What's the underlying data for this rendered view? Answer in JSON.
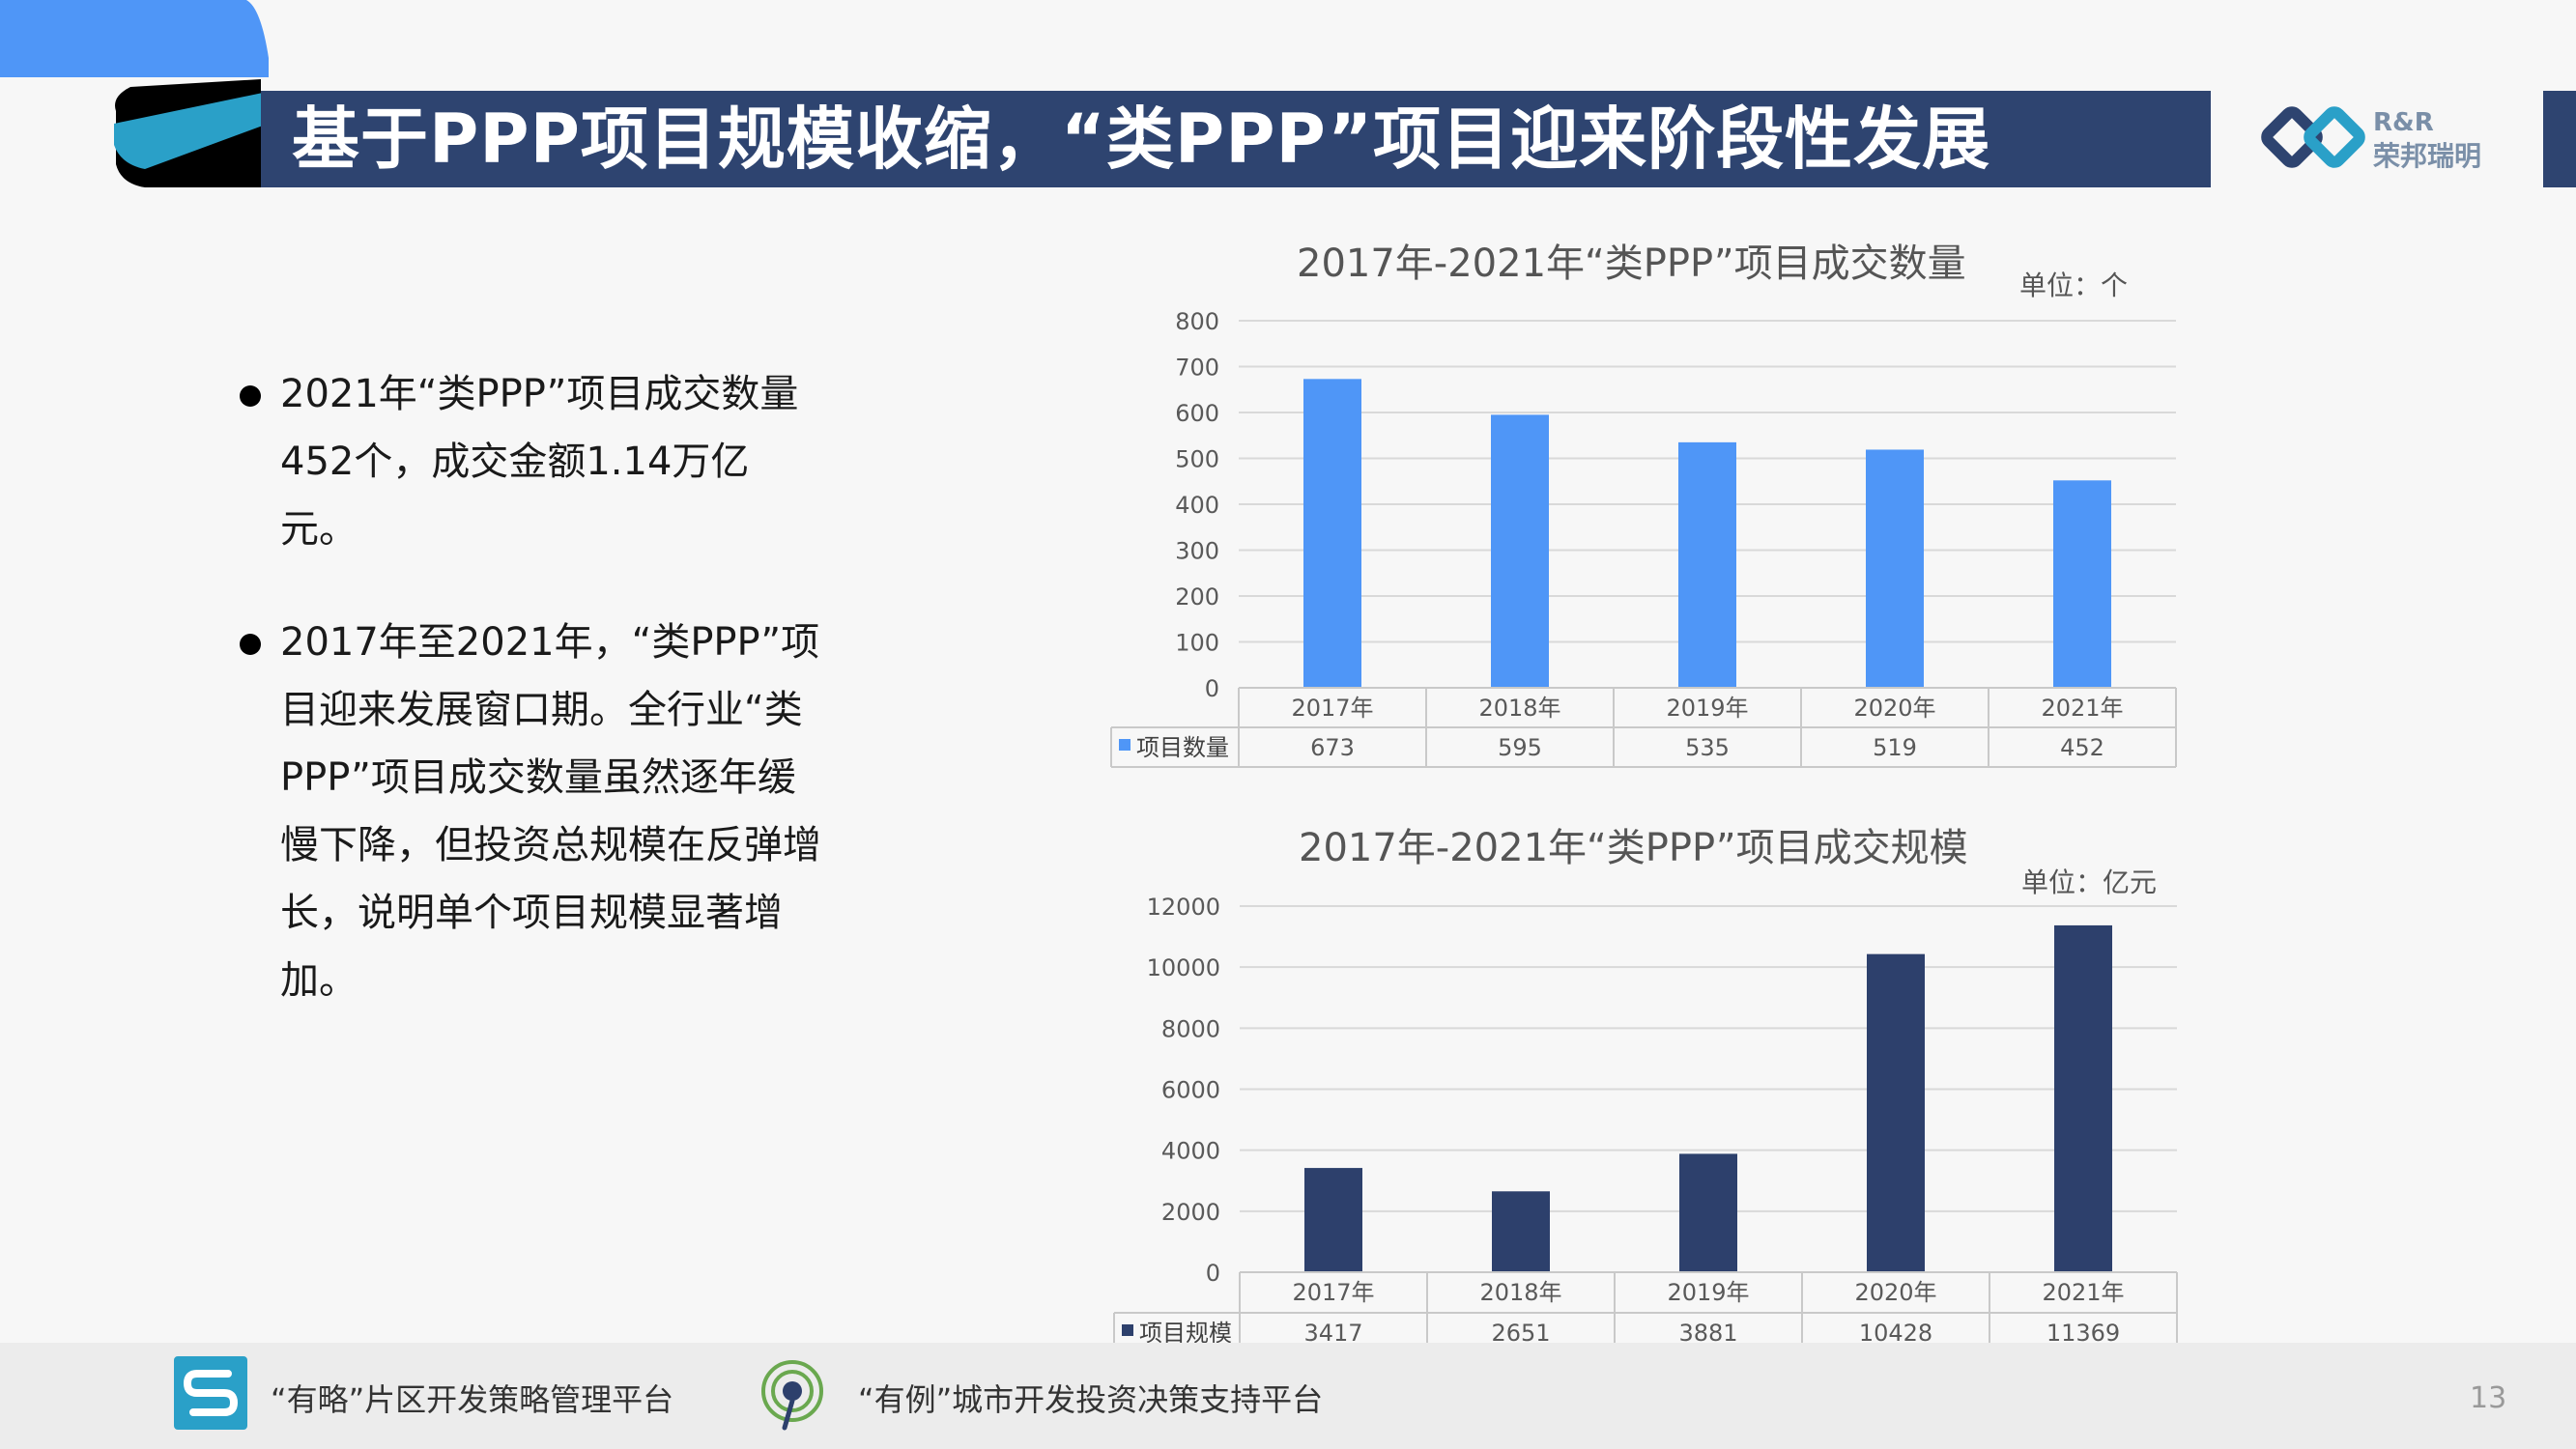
{
  "header": {
    "title": "基于PPP项目规模收缩，“类PPP”项目迎来阶段性发展",
    "logo_line1": "R&R",
    "logo_line2": "荣邦瑞明"
  },
  "bullets": [
    "2021年“类PPP”项目成交数量452个，成交金额1.14万亿元。",
    "2017年至2021年，“类PPP”项目迎来发展窗口期。全行业“类PPP”项目成交数量虽然逐年缓慢下降，但投资总规模在反弹增长，说明单个项目规模显著增加。"
  ],
  "chart_data": [
    {
      "type": "bar",
      "title": "2017年-2021年“类PPP”项目成交数量",
      "unit": "单位：个",
      "categories": [
        "2017年",
        "2018年",
        "2019年",
        "2020年",
        "2021年"
      ],
      "series": [
        {
          "name": "项目数量",
          "values": [
            673,
            595,
            535,
            519,
            452
          ]
        }
      ],
      "ylim": [
        0,
        800
      ],
      "yticks": [
        0,
        100,
        200,
        300,
        400,
        500,
        600,
        700,
        800
      ],
      "color": "#4f96f7",
      "grid": true,
      "data_table": true
    },
    {
      "type": "bar",
      "title": "2017年-2021年“类PPP”项目成交规模",
      "unit": "单位：亿元",
      "categories": [
        "2017年",
        "2018年",
        "2019年",
        "2020年",
        "2021年"
      ],
      "series": [
        {
          "name": "项目规模",
          "values": [
            3417,
            2651,
            3881,
            10428,
            11369
          ]
        }
      ],
      "ylim": [
        0,
        12000
      ],
      "yticks": [
        0,
        2000,
        4000,
        6000,
        8000,
        10000,
        12000
      ],
      "color": "#2d406c",
      "grid": true,
      "data_table": true
    }
  ],
  "footer": {
    "platform1": "“有略”片区开发策略管理平台",
    "platform2": "“有例”城市开发投资决策支持平台",
    "page_number": "13"
  },
  "colors": {
    "title_bar": "#2e4470",
    "accent_blue": "#4f96f7",
    "accent_teal": "#2aa0c8"
  }
}
